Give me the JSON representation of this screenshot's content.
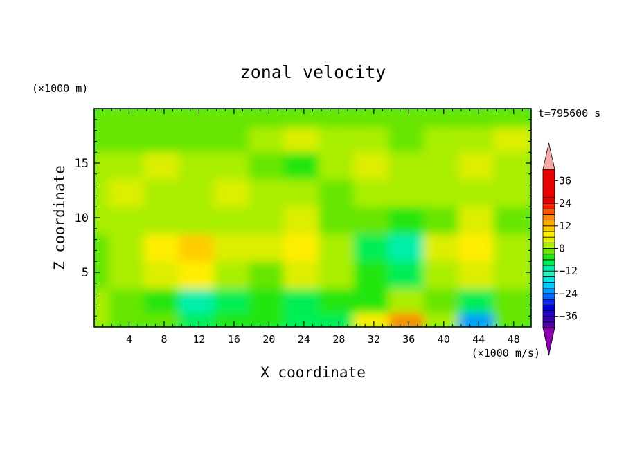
{
  "chart_data": {
    "type": "heatmap",
    "title": "zonal velocity",
    "xlabel": "X coordinate",
    "ylabel": "Z coordinate",
    "x_unit": "(×1000 m/s)",
    "y_unit": "(×1000 m)",
    "time_label": "t=795600 s",
    "xlim": [
      0,
      50
    ],
    "ylim": [
      0,
      20
    ],
    "x_ticks": [
      4,
      8,
      12,
      16,
      20,
      24,
      28,
      32,
      36,
      40,
      44,
      48
    ],
    "y_ticks": [
      5,
      10,
      15
    ],
    "grid": false,
    "colorbar": {
      "position": "right",
      "levels": [
        -42,
        -39,
        -36,
        -33,
        -30,
        -27,
        -24,
        -21,
        -18,
        -15,
        -12,
        -9,
        -6,
        -3,
        0,
        3,
        6,
        9,
        12,
        15,
        18,
        21,
        24,
        27,
        30,
        33,
        36,
        39,
        42
      ],
      "tick_labels": [
        "36",
        "24",
        "12",
        "0",
        "−12",
        "−24",
        "−36"
      ],
      "tick_values": [
        36,
        24,
        12,
        0,
        -12,
        -24,
        -36
      ],
      "colors": [
        "#5500a0",
        "#3c00b4",
        "#1e00c8",
        "#0000dc",
        "#0a2af0",
        "#0066ff",
        "#0099ff",
        "#00ccff",
        "#00e6e6",
        "#33f0c0",
        "#00eeaa",
        "#00ee55",
        "#22e611",
        "#66e600",
        "#aaee00",
        "#ddee00",
        "#ffee00",
        "#ffcc00",
        "#ffaa00",
        "#ff8800",
        "#ff5500",
        "#ff2200",
        "#e60000"
      ],
      "over_color": "#f4a9a9",
      "under_color": "#8800aa"
    },
    "values_description_grid_x": [
      0,
      4,
      8,
      12,
      16,
      20,
      24,
      28,
      32,
      36,
      40,
      44,
      48
    ],
    "values_description_grid_z": [
      0.5,
      2.5,
      5,
      7.5,
      10,
      12.5,
      15,
      17.5,
      19.5
    ],
    "values": [
      [
        2,
        -3,
        -1,
        -9,
        -4,
        -6,
        -9,
        -7,
        6,
        16,
        0,
        -22,
        -2
      ],
      [
        1,
        -2,
        -4,
        -10,
        -8,
        -5,
        -7,
        -6,
        -4,
        2,
        -3,
        -8,
        -1
      ],
      [
        -2,
        0,
        4,
        6,
        0,
        -2,
        5,
        2,
        -6,
        -9,
        1,
        4,
        2
      ],
      [
        -2,
        1,
        6,
        10,
        3,
        3,
        6,
        0,
        -7,
        -11,
        4,
        6,
        1
      ],
      [
        1,
        2,
        1,
        2,
        0,
        1,
        3,
        -1,
        -3,
        -5,
        -2,
        3,
        -2
      ],
      [
        2,
        3,
        1,
        2,
        3,
        1,
        2,
        -1,
        2,
        0,
        1,
        2,
        0
      ],
      [
        0,
        1,
        3,
        2,
        1,
        -1,
        -4,
        0,
        3,
        1,
        0,
        4,
        2
      ],
      [
        -3,
        -1,
        -2,
        -1,
        -2,
        2,
        3,
        2,
        0,
        -1,
        1,
        2,
        3
      ],
      [
        -1,
        -2,
        -1,
        -1,
        -2,
        -1,
        -1,
        -2,
        -1,
        -1,
        -1,
        -1,
        -2
      ]
    ]
  }
}
